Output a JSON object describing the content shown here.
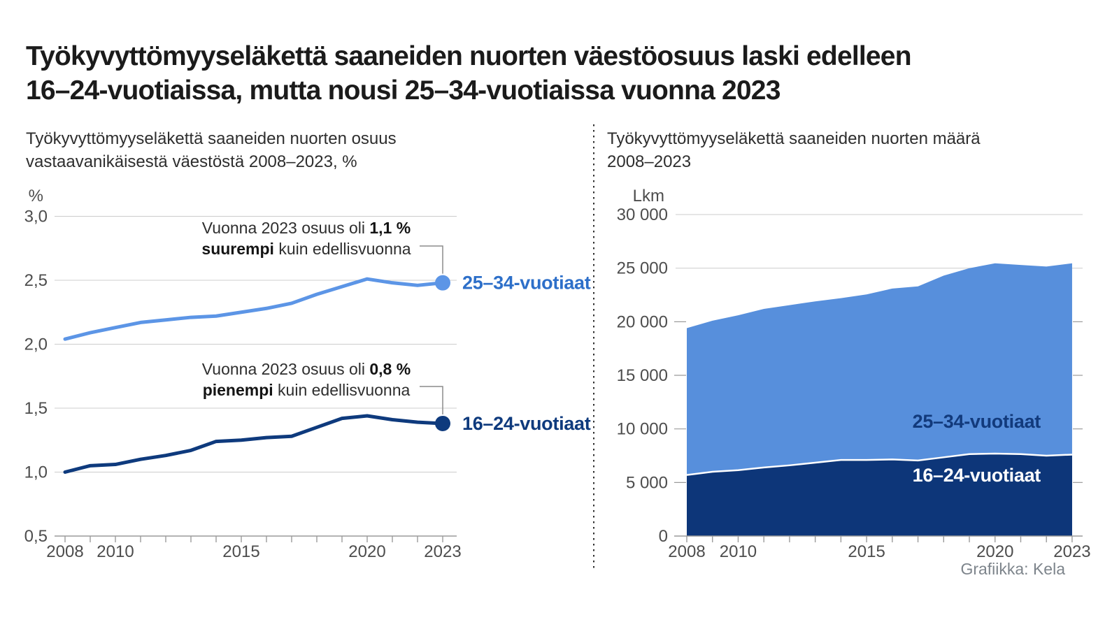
{
  "title": "Työkyvyttömyyseläkettä saaneiden nuorten väestöosuus laski edelleen\n16–24-vuotiaissa, mutta nousi 25–34-vuotiaissa vuonna 2023",
  "credit": "Grafiikka: Kela",
  "colors": {
    "light_blue": "#5C95E6",
    "light_blue_area": "#578FDC",
    "navy": "#0E3A7D",
    "navy_area": "#0D3679",
    "blue_label": "#2D6FC9",
    "navy_label": "#123A7C",
    "gridline": "#cccccc",
    "axis": "#9b9b9b",
    "tick_text": "#4d4d4d",
    "connector": "#8c8c8c",
    "white": "#ffffff"
  },
  "chart_data": [
    {
      "type": "line",
      "title": "Työkyvyttömyyseläkettä saaneiden nuorten osuus\nvastaavanikäisestä väestöstä 2008–2023, %",
      "unit": "%",
      "x": [
        2008,
        2009,
        2010,
        2011,
        2012,
        2013,
        2014,
        2015,
        2016,
        2017,
        2018,
        2019,
        2020,
        2021,
        2022,
        2023
      ],
      "xtick_years": [
        2008,
        2010,
        2015,
        2020,
        2023
      ],
      "xtick_labels": [
        "2008",
        "2010",
        "2015",
        "2020",
        "2023"
      ],
      "ylim": [
        0.5,
        3.0
      ],
      "ytick_values": [
        3.0,
        2.5,
        2.0,
        1.5,
        1.0,
        0.5
      ],
      "ytick_labels": [
        "3,0",
        "2,5",
        "2,0",
        "1,5",
        "1,0",
        "0,5"
      ],
      "grid": true,
      "legend_position": "end-of-line",
      "series": [
        {
          "name": "25–34-vuotiaat",
          "line_color": "#5C95E6",
          "label_color": "#2D6FC9",
          "values": [
            2.04,
            2.09,
            2.13,
            2.17,
            2.19,
            2.21,
            2.22,
            2.25,
            2.28,
            2.32,
            2.39,
            2.45,
            2.51,
            2.48,
            2.46,
            2.48
          ]
        },
        {
          "name": "16–24-vuotiaat",
          "line_color": "#0E3A7D",
          "label_color": "#0E3A7D",
          "values": [
            1.0,
            1.05,
            1.06,
            1.1,
            1.13,
            1.17,
            1.24,
            1.25,
            1.27,
            1.28,
            1.35,
            1.42,
            1.44,
            1.41,
            1.39,
            1.38
          ]
        }
      ],
      "annotations": [
        {
          "series": 0,
          "year": 2023,
          "segments": [
            {
              "t": "Vuonna 2023 osuus oli "
            },
            {
              "t": "1,1 %",
              "b": true
            },
            {
              "t": " "
            },
            {
              "t": "suurempi",
              "b": true
            },
            {
              "t": " kuin edellisvuonna"
            }
          ]
        },
        {
          "series": 1,
          "year": 2023,
          "segments": [
            {
              "t": "Vuonna 2023 osuus oli "
            },
            {
              "t": "0,8 %",
              "b": true
            },
            {
              "t": " "
            },
            {
              "t": "pienempi",
              "b": true
            },
            {
              "t": " kuin edellisvuonna"
            }
          ]
        }
      ]
    },
    {
      "type": "area",
      "title": "Työkyvyttömyyseläkettä saaneiden nuorten määrä\n2008–2023",
      "unit": "Lkm",
      "x": [
        2008,
        2009,
        2010,
        2011,
        2012,
        2013,
        2014,
        2015,
        2016,
        2017,
        2018,
        2019,
        2020,
        2021,
        2022,
        2023
      ],
      "xtick_years": [
        2008,
        2010,
        2015,
        2020,
        2023
      ],
      "xtick_labels": [
        "2008",
        "2010",
        "2015",
        "2020",
        "2023"
      ],
      "ylim": [
        0,
        30000
      ],
      "ytick_values": [
        30000,
        25000,
        20000,
        15000,
        10000,
        5000,
        0
      ],
      "ytick_labels": [
        "30 000",
        "25 000",
        "20 000",
        "15 000",
        "10 000",
        "5 000",
        "0"
      ],
      "full_grid_values": [
        30000,
        25000
      ],
      "stacked": true,
      "series": [
        {
          "name": "25–34-vuotiaat",
          "position": "top",
          "area_color": "#578FDC",
          "label_color": "#123A7C",
          "values": [
            13700,
            14100,
            14450,
            14800,
            14950,
            15050,
            15100,
            15450,
            15950,
            16250,
            16950,
            17350,
            17750,
            17650,
            17650,
            17850
          ]
        },
        {
          "name": "16–24-vuotiaat",
          "position": "bottom",
          "area_color": "#0D3679",
          "label_color": "#FFFFFF",
          "values": [
            5700,
            6000,
            6150,
            6400,
            6600,
            6850,
            7100,
            7100,
            7150,
            7050,
            7350,
            7650,
            7700,
            7650,
            7500,
            7600
          ]
        }
      ]
    }
  ]
}
